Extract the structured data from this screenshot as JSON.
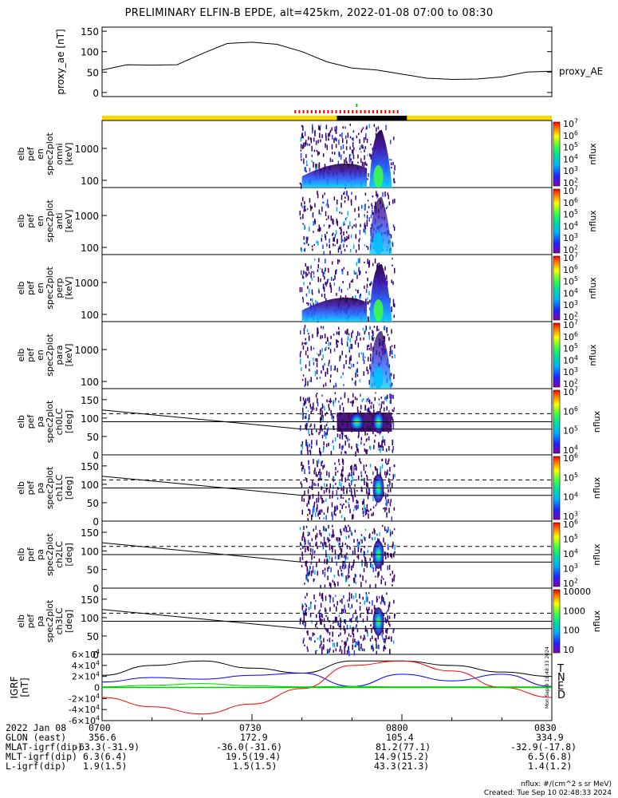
{
  "title": "PRELIMINARY ELFIN-B EPDE, alt=425km, 2022-01-08 07:00 to 08:30",
  "colors": {
    "bar_yellow": "#ffd700",
    "bar_black": "#000000",
    "tick_red": "#ff0000",
    "tick_green": "#00cc00",
    "igrf_T": "#000000",
    "igrf_N": "#0000ff",
    "igrf_E": "#00cc00",
    "igrf_D": "#ff0000"
  },
  "time_axis": {
    "date_label": "2022 Jan 08",
    "ticks": [
      "0700",
      "0730",
      "0800",
      "0830"
    ]
  },
  "ephemeris": [
    {
      "label": "GLON (east)",
      "values": [
        "356.6",
        "172.9",
        "105.4",
        "334.9"
      ]
    },
    {
      "label": "MLAT-igrf(dip)",
      "values": [
        "-63.3(-31.9)",
        "-36.0(-31.6)",
        "81.2(77.1)",
        "-32.9(-17.8)"
      ]
    },
    {
      "label": "MLT-igrf(dip)",
      "values": [
        "6.3(6.4)",
        "19.5(19.4)",
        "14.9(15.2)",
        "6.5(6.8)"
      ]
    },
    {
      "label": "L-igrf(dip)",
      "values": [
        "1.9(1.5)",
        "1.5(1.5)",
        "43.3(21.3)",
        "1.4(1.2)"
      ]
    }
  ],
  "footer": {
    "units": "nflux: #/(cm^2 s sr MeV)",
    "created": "Created: Tue Sep 10 02:48:33 2024",
    "side_stamp": "Mon Sep 9 18:48:33 2024"
  },
  "chart_data": [
    {
      "type": "line",
      "ylabel": "proxy_ae [nT]",
      "legend": "proxy_AE",
      "yticks": [
        "0",
        "50",
        "100",
        "150"
      ],
      "ylim": [
        -10,
        160
      ],
      "x_minutes": [
        0,
        5,
        10,
        15,
        20,
        25,
        30,
        35,
        40,
        45,
        50,
        55,
        60,
        65,
        70,
        75,
        80,
        85,
        90
      ],
      "values": [
        55,
        68,
        67,
        68,
        95,
        120,
        123,
        118,
        100,
        75,
        60,
        55,
        45,
        35,
        32,
        33,
        38,
        50,
        52
      ]
    },
    {
      "type": "heatmap",
      "ylabel": "elb pef en spec2plot omni [keV]",
      "yticks": [
        "100",
        "1000"
      ],
      "colorbar": {
        "label": "nflux",
        "ticks": [
          "10^2",
          "10^3",
          "10^4",
          "10^5",
          "10^6",
          "10^7"
        ]
      }
    },
    {
      "type": "heatmap",
      "ylabel": "elb pef en spec2plot anti [keV]",
      "yticks": [
        "100",
        "1000"
      ],
      "colorbar": {
        "label": "nflux",
        "ticks": [
          "10^2",
          "10^3",
          "10^4",
          "10^5",
          "10^6",
          "10^7"
        ]
      }
    },
    {
      "type": "heatmap",
      "ylabel": "elb pef en spec2plot perp [keV]",
      "yticks": [
        "100",
        "1000"
      ],
      "colorbar": {
        "label": "nflux",
        "ticks": [
          "10^2",
          "10^3",
          "10^4",
          "10^5",
          "10^6",
          "10^7"
        ]
      }
    },
    {
      "type": "heatmap",
      "ylabel": "elb pef en spec2plot para [keV]",
      "yticks": [
        "100",
        "1000"
      ],
      "colorbar": {
        "label": "nflux",
        "ticks": [
          "10^2",
          "10^3",
          "10^4",
          "10^5",
          "10^6",
          "10^7"
        ]
      }
    },
    {
      "type": "heatmap",
      "ylabel": "elb pef pa spec2plot ch0LC [deg]",
      "yticks": [
        "0",
        "50",
        "100",
        "150"
      ],
      "colorbar": {
        "label": "nflux",
        "ticks": [
          "10^4",
          "10^5",
          "10^6",
          "10^7"
        ]
      }
    },
    {
      "type": "heatmap",
      "ylabel": "elb pef pa spec2plot ch1LC [deg]",
      "yticks": [
        "0",
        "50",
        "100",
        "150"
      ],
      "colorbar": {
        "label": "nflux",
        "ticks": [
          "10^3",
          "10^4",
          "10^5",
          "10^6"
        ]
      }
    },
    {
      "type": "heatmap",
      "ylabel": "elb pef pa spec2plot ch2LC [deg]",
      "yticks": [
        "0",
        "50",
        "100",
        "150"
      ],
      "colorbar": {
        "label": "nflux",
        "ticks": [
          "10^2",
          "10^3",
          "10^4",
          "10^5",
          "10^6"
        ]
      }
    },
    {
      "type": "heatmap",
      "ylabel": "elb pef pa spec2plot ch3LC [deg]",
      "yticks": [
        "0",
        "50",
        "100",
        "150"
      ],
      "colorbar": {
        "label": "nflux",
        "ticks": [
          "10",
          "100",
          "1000",
          "10000"
        ]
      }
    },
    {
      "type": "line",
      "ylabel": "IGRF [nT]",
      "yticks": [
        "6x10^4",
        "4x10^4",
        "2x10^4",
        "0",
        "-2x10^4",
        "-4x10^4",
        "-6x10^4"
      ],
      "ylim": [
        -60000,
        60000
      ],
      "x_minutes": [
        0,
        10,
        20,
        30,
        40,
        50,
        60,
        70,
        80,
        90
      ],
      "series": [
        {
          "name": "T",
          "values": [
            22000,
            40000,
            48000,
            35000,
            26000,
            48000,
            48000,
            40000,
            28000,
            20000
          ]
        },
        {
          "name": "N",
          "values": [
            10000,
            18000,
            15000,
            22000,
            26000,
            2000,
            24000,
            12000,
            24000,
            2000
          ]
        },
        {
          "name": "E",
          "values": [
            1000,
            4000,
            7000,
            3000,
            1000,
            2000,
            1000,
            1000,
            1000,
            1000
          ]
        },
        {
          "name": "D",
          "values": [
            -18000,
            -35000,
            -48000,
            -30000,
            -2000,
            40000,
            48000,
            30000,
            0,
            -18000
          ]
        }
      ]
    }
  ]
}
